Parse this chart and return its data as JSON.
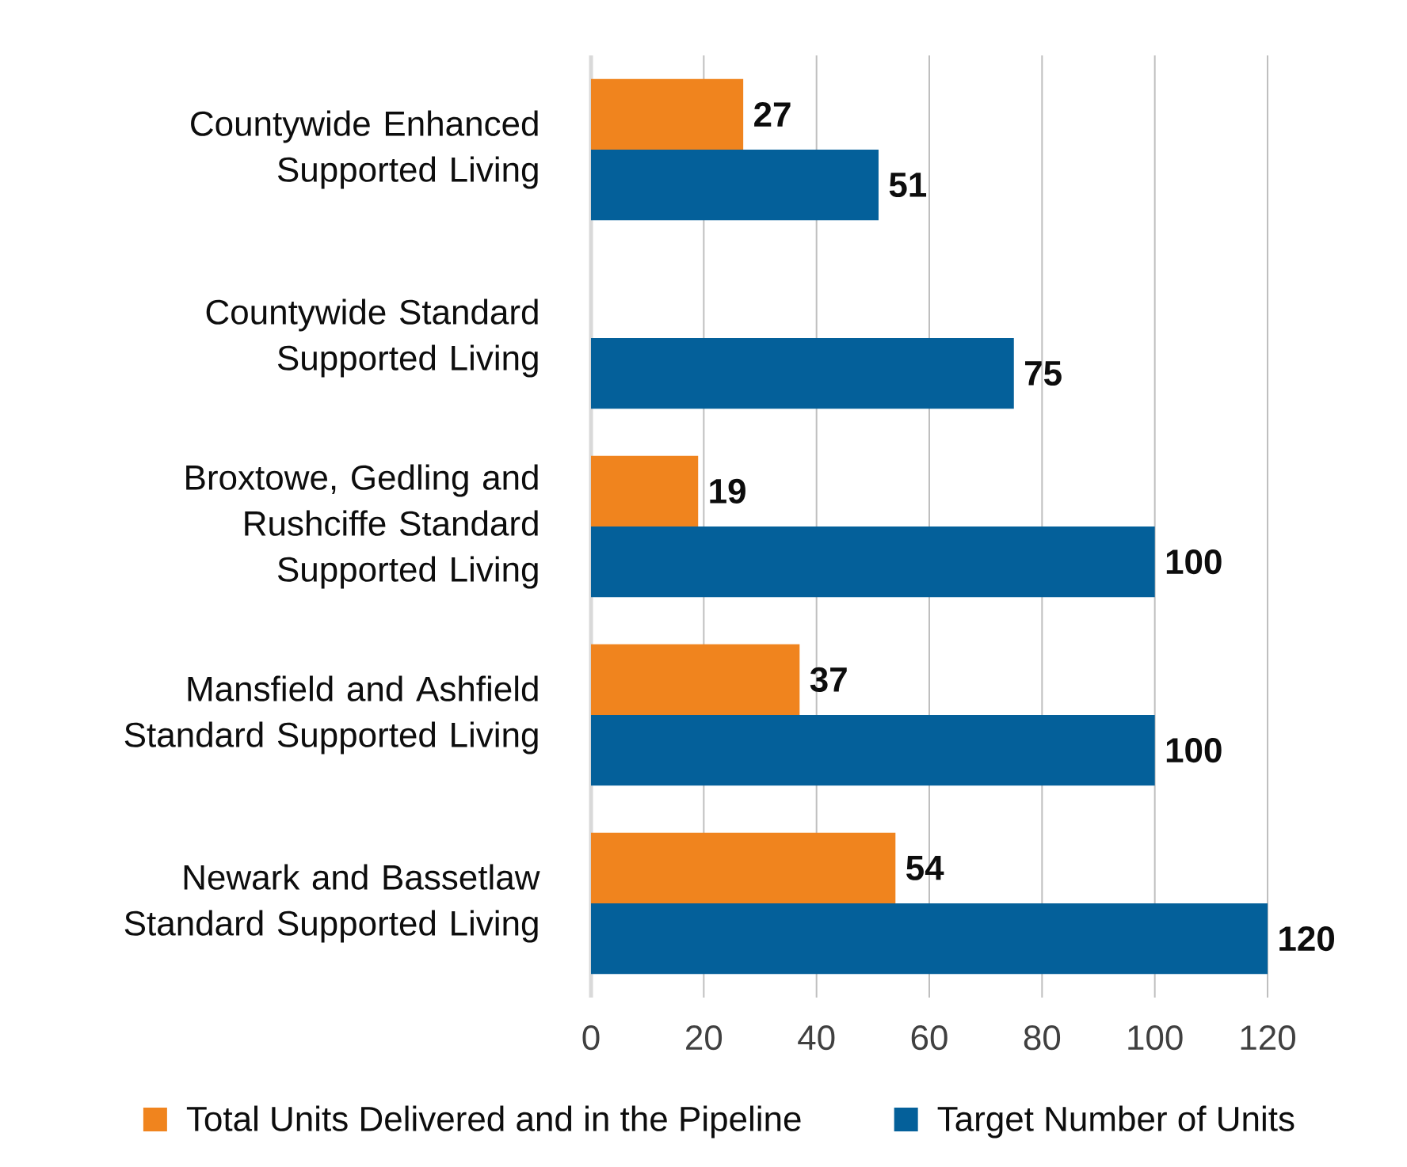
{
  "chart_data": {
    "type": "bar",
    "orientation": "horizontal",
    "categories": [
      "Countywide Enhanced Supported Living",
      "Countywide Standard Supported Living",
      "Broxtowe, Gedling and Rushciffe Standard Supported Living",
      "Mansfield and Ashfield Standard Supported Living",
      "Newark and Bassetlaw Standard Supported Living"
    ],
    "series": [
      {
        "name": "Total Units Delivered and in the Pipeline",
        "color": "#f0841e",
        "values": [
          27,
          null,
          19,
          37,
          54
        ]
      },
      {
        "name": "Target Number of Units",
        "color": "#04609a",
        "values": [
          51,
          75,
          100,
          100,
          120
        ]
      }
    ],
    "xlim": [
      0,
      120
    ],
    "xticks": [
      0,
      20,
      40,
      60,
      80,
      100,
      120
    ],
    "grid": "x",
    "legend": "bottom",
    "data_labels": true
  }
}
